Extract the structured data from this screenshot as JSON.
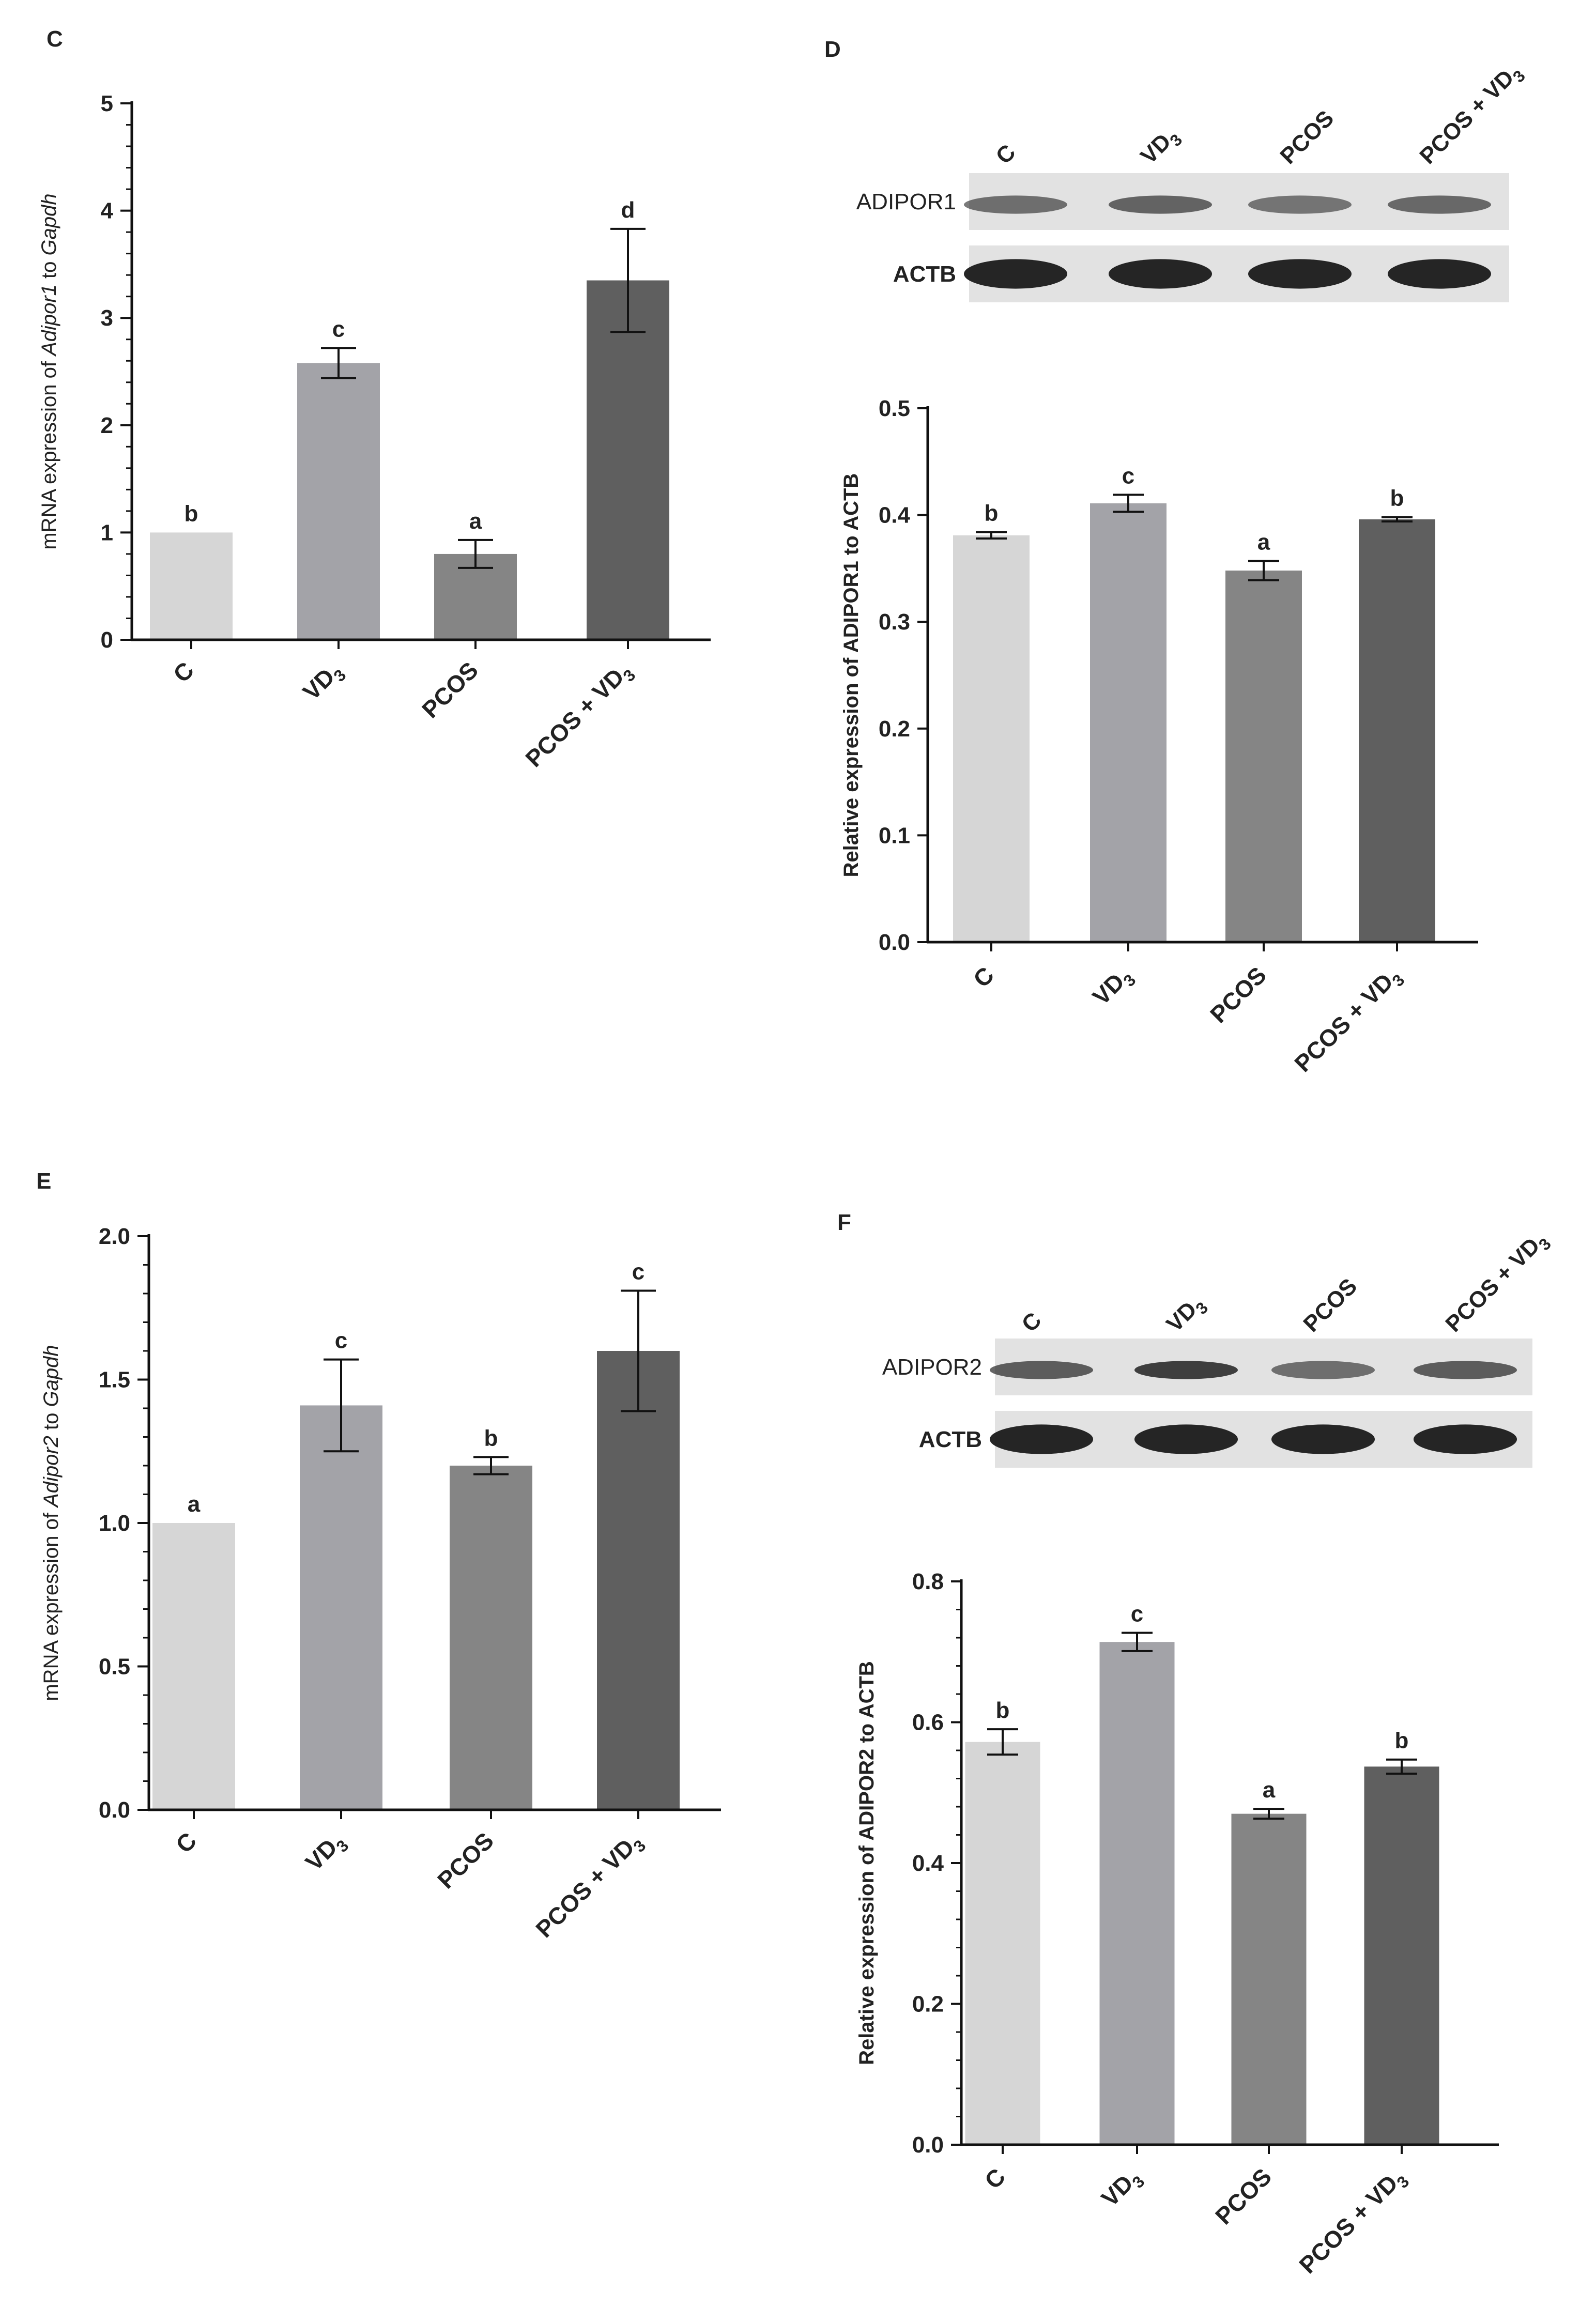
{
  "colors": {
    "bar_shades": [
      "#d6d6d6",
      "#a3a3a8",
      "#858585",
      "#5f5f5f"
    ],
    "axis": "#111111",
    "band": "#1a1a1a",
    "blot_bg": "#e2e2e2"
  },
  "panels": {
    "C": "C",
    "D": "D",
    "E": "E",
    "F": "F"
  },
  "blot_D": {
    "lanes": [
      "C",
      "VD3",
      "PCOS",
      "PCOS + VD3"
    ],
    "rows": [
      "ADIPOR1",
      "ACTB"
    ],
    "row_intensity": [
      [
        0.55,
        0.65,
        0.5,
        0.6
      ],
      [
        1.0,
        1.0,
        1.0,
        1.0
      ]
    ]
  },
  "blot_F": {
    "lanes": [
      "C",
      "VD3",
      "PCOS",
      "PCOS + VD3"
    ],
    "rows": [
      "ADIPOR2",
      "ACTB"
    ],
    "row_intensity": [
      [
        0.7,
        0.95,
        0.55,
        0.7
      ],
      [
        1.0,
        1.0,
        1.0,
        1.0
      ]
    ]
  },
  "chart_data": [
    {
      "panel": "C",
      "type": "bar",
      "categories": [
        "C",
        "VD3",
        "PCOS",
        "PCOS + VD3"
      ],
      "values": [
        1.0,
        2.58,
        0.8,
        3.35
      ],
      "errors": [
        0.0,
        0.14,
        0.13,
        0.48
      ],
      "significance": [
        "b",
        "c",
        "a",
        "d"
      ],
      "ylabel_prefix": "mRNA expression of ",
      "ylabel_gene": "Adipor1",
      "ylabel_mid": " to ",
      "ylabel_ref": "Gapdh",
      "ylim": [
        0,
        5
      ],
      "yticks": [
        "0",
        "1",
        "2",
        "3",
        "4",
        "5"
      ],
      "ytick_values": [
        0,
        1,
        2,
        3,
        4,
        5
      ],
      "minor_ticks": true
    },
    {
      "panel": "D",
      "type": "bar",
      "categories": [
        "C",
        "VD3",
        "PCOS",
        "PCOS + VD3"
      ],
      "values": [
        0.381,
        0.411,
        0.348,
        0.396
      ],
      "errors": [
        0.003,
        0.008,
        0.009,
        0.002
      ],
      "significance": [
        "b",
        "c",
        "a",
        "b"
      ],
      "ylabel": "Relative expression of ADIPOR1 to ACTB",
      "ylim": [
        0,
        0.5
      ],
      "yticks": [
        "0.0",
        "0.1",
        "0.2",
        "0.3",
        "0.4",
        "0.5"
      ],
      "ytick_values": [
        0,
        0.1,
        0.2,
        0.3,
        0.4,
        0.5
      ],
      "minor_ticks": false
    },
    {
      "panel": "E",
      "type": "bar",
      "categories": [
        "C",
        "VD3",
        "PCOS",
        "PCOS + VD3"
      ],
      "values": [
        1.0,
        1.41,
        1.2,
        1.6
      ],
      "errors": [
        0.0,
        0.16,
        0.03,
        0.21
      ],
      "significance": [
        "a",
        "c",
        "b",
        "c"
      ],
      "ylabel_prefix": "mRNA expression of ",
      "ylabel_gene": "Adipor2",
      "ylabel_mid": " to ",
      "ylabel_ref": "Gapdh",
      "ylim": [
        0,
        2
      ],
      "yticks": [
        "0.0",
        "0.5",
        "1.0",
        "1.5",
        "2.0"
      ],
      "ytick_values": [
        0,
        0.5,
        1.0,
        1.5,
        2.0
      ],
      "minor_ticks": true
    },
    {
      "panel": "F",
      "type": "bar",
      "categories": [
        "C",
        "VD3",
        "PCOS",
        "PCOS + VD3"
      ],
      "values": [
        0.572,
        0.714,
        0.47,
        0.537
      ],
      "errors": [
        0.018,
        0.013,
        0.007,
        0.01
      ],
      "significance": [
        "b",
        "c",
        "a",
        "b"
      ],
      "ylabel": "Relative expression of ADIPOR2 to ACTB",
      "ylim": [
        0,
        0.8
      ],
      "yticks": [
        "0.0",
        "0.2",
        "0.4",
        "0.6",
        "0.8"
      ],
      "ytick_values": [
        0,
        0.2,
        0.4,
        0.6,
        0.8
      ],
      "minor_ticks": true
    }
  ]
}
